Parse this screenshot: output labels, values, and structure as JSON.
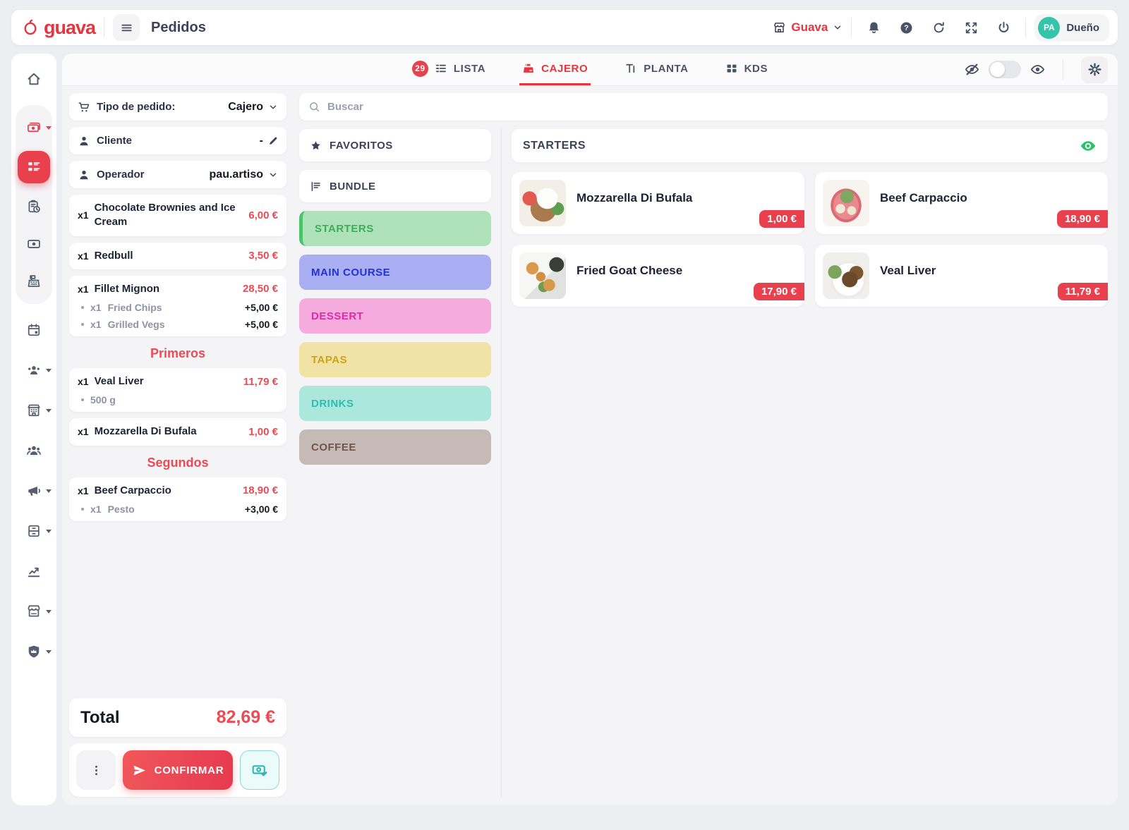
{
  "header": {
    "brand": "guava",
    "page_title": "Pedidos",
    "store_name": "Guava",
    "user_initials": "PA",
    "user_role": "Dueño"
  },
  "tabs": {
    "items": [
      {
        "label": "LISTA",
        "icon": "tab-list",
        "badge": "29",
        "active": false
      },
      {
        "label": "CAJERO",
        "icon": "tab-register",
        "active": true
      },
      {
        "label": "PLANTA",
        "icon": "tab-floor",
        "active": false
      },
      {
        "label": "KDS",
        "icon": "tab-kds",
        "active": false
      }
    ]
  },
  "sidebar": {
    "top": [
      {
        "name": "home"
      }
    ],
    "group": [
      {
        "name": "sales",
        "red": true,
        "caret": true
      },
      {
        "name": "orders",
        "active": true
      },
      {
        "name": "order-history"
      },
      {
        "name": "payments"
      },
      {
        "name": "cash-register"
      }
    ],
    "rest": [
      {
        "name": "calendar"
      },
      {
        "name": "staff",
        "caret": true
      },
      {
        "name": "establishment",
        "caret": true
      },
      {
        "name": "customers"
      },
      {
        "name": "marketing",
        "caret": true
      },
      {
        "name": "inventory",
        "caret": true
      },
      {
        "name": "statistics"
      },
      {
        "name": "store-front",
        "caret": true
      },
      {
        "name": "admin-shield",
        "caret": true
      }
    ]
  },
  "order_panel": {
    "order_type": {
      "label": "Tipo de pedido:",
      "value": "Cajero"
    },
    "client": {
      "label": "Cliente",
      "value": "-"
    },
    "operator": {
      "label": "Operador",
      "value": "pau.artiso"
    },
    "lines": [
      {
        "type": "item",
        "qty": "x1",
        "name": "Chocolate Brownies and Ice Cream",
        "price": "6,00 €"
      },
      {
        "type": "item",
        "qty": "x1",
        "name": "Redbull",
        "price": "3,50 €"
      },
      {
        "type": "item",
        "qty": "x1",
        "name": "Fillet Mignon",
        "price": "28,50 €",
        "subs": [
          {
            "qty": "x1",
            "name": "Fried Chips",
            "price": "+5,00 €"
          },
          {
            "qty": "x1",
            "name": "Grilled Vegs",
            "price": "+5,00 €"
          }
        ]
      },
      {
        "type": "section",
        "label": "Primeros"
      },
      {
        "type": "item",
        "qty": "x1",
        "name": "Veal Liver",
        "price": "11,79 €",
        "subs": [
          {
            "qty": "",
            "name": "500 g",
            "price": ""
          }
        ]
      },
      {
        "type": "item",
        "qty": "x1",
        "name": "Mozzarella Di Bufala",
        "price": "1,00 €"
      },
      {
        "type": "section",
        "label": "Segundos"
      },
      {
        "type": "item",
        "qty": "x1",
        "name": "Beef Carpaccio",
        "price": "18,90 €",
        "subs": [
          {
            "qty": "x1",
            "name": "Pesto",
            "price": "+3,00 €"
          }
        ]
      }
    ],
    "total": {
      "label": "Total",
      "value": "82,69 €"
    },
    "confirm_label": "CONFIRMAR"
  },
  "catalog": {
    "search_placeholder": "Buscar",
    "favorites_label": "FAVORITOS",
    "bundle_label": "BUNDLE",
    "categories": [
      {
        "label": "STARTERS",
        "bg": "#b0e2ba",
        "color": "#3fae5c",
        "accent": "#4cc36a",
        "active": true
      },
      {
        "label": "MAIN COURSE",
        "bg": "#a9aff2",
        "color": "#2231d8",
        "active": false
      },
      {
        "label": "DESSERT",
        "bg": "#f6abdf",
        "color": "#e12aa4",
        "active": false
      },
      {
        "label": "TAPAS",
        "bg": "#f1e2a6",
        "color": "#cda21d",
        "active": false
      },
      {
        "label": "DRINKS",
        "bg": "#abe7dd",
        "color": "#2cbfae",
        "active": false
      },
      {
        "label": "COFFEE",
        "bg": "#c5bab6",
        "color": "#6f564c",
        "active": false
      }
    ]
  },
  "products_panel": {
    "section_title": "STARTERS",
    "products": [
      {
        "name": "Mozzarella Di Bufala",
        "price": "1,00 €",
        "img": "mozzarella"
      },
      {
        "name": "Beef Carpaccio",
        "price": "18,90 €",
        "img": "carpaccio"
      },
      {
        "name": "Fried Goat Cheese",
        "price": "17,90 €",
        "img": "goatcheese"
      },
      {
        "name": "Veal Liver",
        "price": "11,79 €",
        "img": "veal"
      }
    ]
  },
  "colors": {
    "primary_red": "#e8414d",
    "brand_red": "#e8343f",
    "avatar_teal": "#35c3a9",
    "eye_green": "#27c468",
    "pay_teal": "#27b6b0"
  }
}
